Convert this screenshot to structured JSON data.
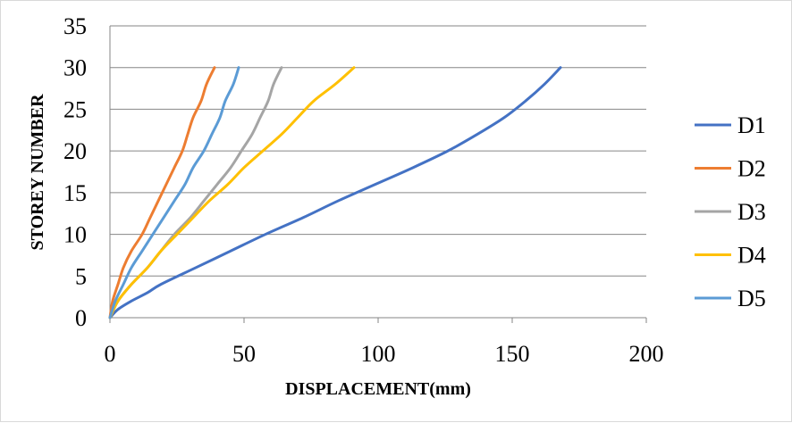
{
  "chart_data": {
    "type": "line",
    "title": "",
    "xlabel": "DISPLACEMENT(mm)",
    "ylabel": "STOREY NUMBER",
    "xlim": [
      0,
      200
    ],
    "ylim": [
      0,
      35
    ],
    "xticks": [
      0,
      50,
      100,
      150,
      200
    ],
    "yticks": [
      0,
      5,
      10,
      15,
      20,
      25,
      30,
      35
    ],
    "grid": "horizontal",
    "legend_position": "right",
    "series": [
      {
        "name": "D1",
        "color": "#4472C4",
        "points": [
          [
            0,
            0
          ],
          [
            3,
            1
          ],
          [
            8,
            2
          ],
          [
            14,
            3
          ],
          [
            19,
            4
          ],
          [
            32,
            6
          ],
          [
            45,
            8
          ],
          [
            58,
            10
          ],
          [
            72,
            12
          ],
          [
            85,
            14
          ],
          [
            99,
            16
          ],
          [
            113,
            18
          ],
          [
            126,
            20
          ],
          [
            137,
            22
          ],
          [
            147,
            24
          ],
          [
            155,
            26
          ],
          [
            162,
            28
          ],
          [
            168,
            30
          ]
        ]
      },
      {
        "name": "D2",
        "color": "#ED7D31",
        "points": [
          [
            0,
            0
          ],
          [
            1,
            2
          ],
          [
            3,
            4
          ],
          [
            5,
            6
          ],
          [
            8,
            8
          ],
          [
            12,
            10
          ],
          [
            15,
            12
          ],
          [
            18,
            14
          ],
          [
            21,
            16
          ],
          [
            24,
            18
          ],
          [
            27,
            20
          ],
          [
            29,
            22
          ],
          [
            31,
            24
          ],
          [
            34,
            26
          ],
          [
            36,
            28
          ],
          [
            39,
            30
          ]
        ]
      },
      {
        "name": "D3",
        "color": "#A5A5A5",
        "points": [
          [
            0,
            0
          ],
          [
            3,
            2
          ],
          [
            8,
            4
          ],
          [
            14,
            6
          ],
          [
            19,
            8
          ],
          [
            24,
            10
          ],
          [
            30,
            12
          ],
          [
            35,
            14
          ],
          [
            40,
            16
          ],
          [
            45,
            18
          ],
          [
            49,
            20
          ],
          [
            53,
            22
          ],
          [
            56,
            24
          ],
          [
            59,
            26
          ],
          [
            61,
            28
          ],
          [
            64,
            30
          ]
        ]
      },
      {
        "name": "D4",
        "color": "#FFC000",
        "points": [
          [
            0,
            0
          ],
          [
            3,
            2
          ],
          [
            8,
            4
          ],
          [
            14,
            6
          ],
          [
            19,
            8
          ],
          [
            25,
            10
          ],
          [
            31,
            12
          ],
          [
            37,
            14
          ],
          [
            44,
            16
          ],
          [
            50,
            18
          ],
          [
            57,
            20
          ],
          [
            64,
            22
          ],
          [
            70,
            24
          ],
          [
            76,
            26
          ],
          [
            84,
            28
          ],
          [
            91,
            30
          ]
        ]
      },
      {
        "name": "D5",
        "color": "#5B9BD5",
        "points": [
          [
            0,
            0
          ],
          [
            2,
            2
          ],
          [
            5,
            4
          ],
          [
            8,
            6
          ],
          [
            12,
            8
          ],
          [
            16,
            10
          ],
          [
            20,
            12
          ],
          [
            24,
            14
          ],
          [
            28,
            16
          ],
          [
            31,
            18
          ],
          [
            35,
            20
          ],
          [
            38,
            22
          ],
          [
            41,
            24
          ],
          [
            43,
            26
          ],
          [
            46,
            28
          ],
          [
            48,
            30
          ]
        ]
      }
    ]
  }
}
